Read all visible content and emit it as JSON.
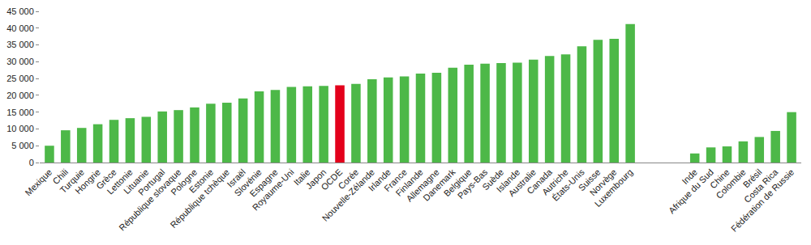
{
  "chart_data": {
    "type": "bar",
    "categories": [
      "Mexique",
      "Chili",
      "Turquie",
      "Hongrie",
      "Grèce",
      "Lettonie",
      "Lituanie",
      "Portugal",
      "République slovaque",
      "Pologne",
      "Estonie",
      "République tchèque",
      "Israël",
      "Slovénie",
      "Espagne",
      "Royaume-Uni",
      "Italie",
      "Japon",
      "OCDE",
      "Corée",
      "Nouvelle-Zélande",
      "Irlande",
      "France",
      "Finlande",
      "Allemagne",
      "Danemark",
      "Belgique",
      "Pays-Bas",
      "Suède",
      "Islande",
      "Australie",
      "Canada",
      "Autriche",
      "États-Unis",
      "Suisse",
      "Norvège",
      "Luxembourg",
      null,
      null,
      null,
      "Inde",
      "Afrique du Sud",
      "Chine",
      "Colombie",
      "Brésil",
      "Costa Rica",
      "Fédération de Russie"
    ],
    "values": [
      5000,
      9600,
      10300,
      11400,
      12700,
      13200,
      13600,
      15200,
      15600,
      16400,
      17500,
      17800,
      19100,
      21200,
      21600,
      22500,
      22700,
      22800,
      23000,
      23400,
      24800,
      25300,
      25600,
      26500,
      26700,
      28200,
      29100,
      29400,
      29600,
      29700,
      30600,
      31700,
      32200,
      34600,
      36500,
      36800,
      41200,
      null,
      null,
      null,
      2700,
      4500,
      4800,
      6300,
      7600,
      9400,
      15000
    ],
    "colors": [
      "#4db848",
      "#4db848",
      "#4db848",
      "#4db848",
      "#4db848",
      "#4db848",
      "#4db848",
      "#4db848",
      "#4db848",
      "#4db848",
      "#4db848",
      "#4db848",
      "#4db848",
      "#4db848",
      "#4db848",
      "#4db848",
      "#4db848",
      "#4db848",
      "#e3001b",
      "#4db848",
      "#4db848",
      "#4db848",
      "#4db848",
      "#4db848",
      "#4db848",
      "#4db848",
      "#4db848",
      "#4db848",
      "#4db848",
      "#4db848",
      "#4db848",
      "#4db848",
      "#4db848",
      "#4db848",
      "#4db848",
      "#4db848",
      "#4db848",
      "#4db848",
      "#4db848",
      "#4db848",
      "#4db848",
      "#4db848",
      "#4db848",
      "#4db848",
      "#4db848",
      "#4db848",
      "#4db848"
    ],
    "ylim": [
      0,
      45000
    ],
    "yticks": [
      0,
      {
        "value": 5000,
        "label": "5 000"
      },
      {
        "value": 10000,
        "label": "10 000"
      },
      {
        "value": 15000,
        "label": "15 000"
      },
      {
        "value": 20000,
        "label": "20 000"
      },
      {
        "value": 25000,
        "label": "25 000"
      },
      {
        "value": 30000,
        "label": "30 000"
      },
      {
        "value": 35000,
        "label": "35 000"
      },
      {
        "value": 40000,
        "label": "40 000"
      },
      {
        "value": 45000,
        "label": "45 000"
      }
    ],
    "grid": false
  }
}
